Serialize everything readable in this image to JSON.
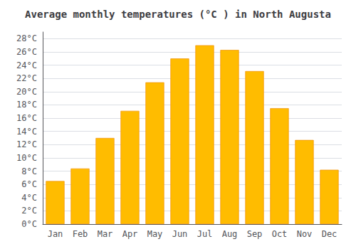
{
  "chart_data": {
    "type": "bar",
    "title": "Average monthly temperatures (°C ) in North Augusta",
    "categories": [
      "Jan",
      "Feb",
      "Mar",
      "Apr",
      "May",
      "Jun",
      "Jul",
      "Aug",
      "Sep",
      "Oct",
      "Nov",
      "Dec"
    ],
    "values": [
      6.5,
      8.4,
      13.0,
      17.1,
      21.4,
      25.0,
      27.0,
      26.3,
      23.1,
      17.5,
      12.7,
      8.2
    ],
    "color": "#FFBC00",
    "ylim": [
      0,
      29
    ],
    "yticks": [
      {
        "value": 0,
        "label": "0°C"
      },
      {
        "value": 2,
        "label": "2°C"
      },
      {
        "value": 4,
        "label": "4°C"
      },
      {
        "value": 6,
        "label": "6°C"
      },
      {
        "value": 8,
        "label": "8°C"
      },
      {
        "value": 10,
        "label": "10°C"
      },
      {
        "value": 12,
        "label": "12°C"
      },
      {
        "value": 14,
        "label": "14°C"
      },
      {
        "value": 16,
        "label": "16°C"
      },
      {
        "value": 18,
        "label": "18°C"
      },
      {
        "value": 20,
        "label": "20°C"
      },
      {
        "value": 22,
        "label": "22°C"
      },
      {
        "value": 24,
        "label": "24°C"
      },
      {
        "value": 26,
        "label": "26°C"
      },
      {
        "value": 28,
        "label": "28°C"
      }
    ],
    "grid": true
  }
}
